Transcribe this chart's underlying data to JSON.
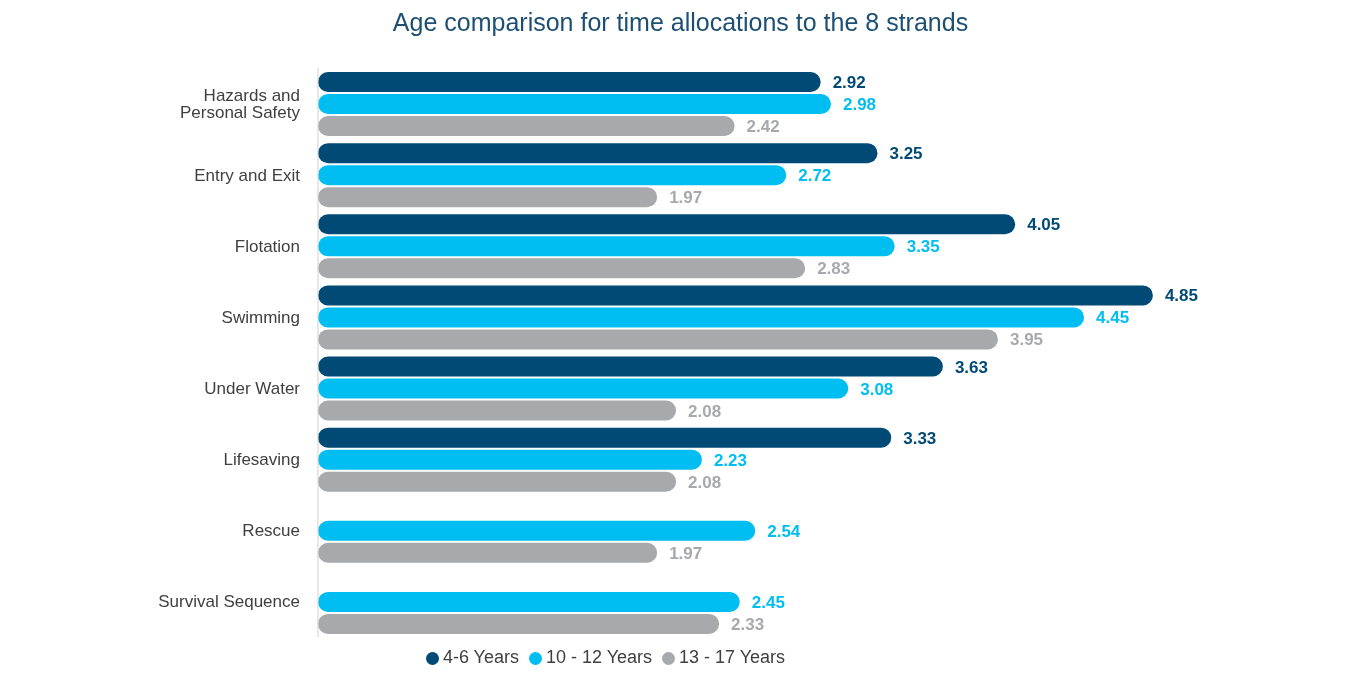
{
  "chart_data": {
    "type": "bar",
    "orientation": "horizontal",
    "title": "Age comparison for time allocations to the 8 strands",
    "categories": [
      "Hazards and Personal Safety",
      "Entry and Exit",
      "Flotation",
      "Swimming",
      "Under Water",
      "Lifesaving",
      "Rescue",
      "Survival Sequence"
    ],
    "series": [
      {
        "name": "4-6 Years",
        "color": "#004a75",
        "values": [
          2.92,
          3.25,
          4.05,
          4.85,
          3.63,
          3.33,
          null,
          null
        ]
      },
      {
        "name": "10 - 12 Years",
        "color": "#00bdf2",
        "values": [
          2.98,
          2.72,
          3.35,
          4.45,
          3.08,
          2.23,
          2.54,
          2.45
        ]
      },
      {
        "name": "13 - 17 Years",
        "color": "#a7a9ac",
        "values": [
          2.42,
          1.97,
          2.83,
          3.95,
          2.08,
          2.08,
          1.97,
          2.33
        ]
      }
    ],
    "data_labels": true,
    "grid": false,
    "legend": "bottom"
  }
}
